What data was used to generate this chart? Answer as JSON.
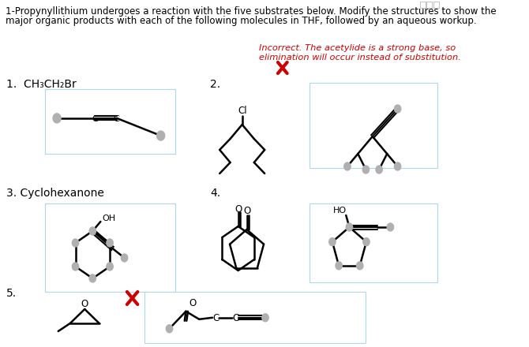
{
  "title_line1": "1-Propynyllithium undergoes a reaction with the five substrates below. Modify the structures to show the",
  "title_line2": "major organic products with each of the following molecules in THF, followed by an aqueous workup.",
  "incorrect_line1": "Incorrect. The acetylide is a strong base, so",
  "incorrect_line2": "elimination will occur instead of substitution.",
  "label1": "1.  CH₃CH₂Br",
  "label2": "2.",
  "label3": "3. Cyclohexanone",
  "label4": "4.",
  "label5": "5.",
  "bg_color": "#ffffff",
  "grid_color": "#add8e6",
  "text_color": "#000000",
  "incorrect_color": "#cc0000",
  "title_fontsize": 8.5,
  "label_fontsize": 10,
  "sub_fontsize": 8
}
